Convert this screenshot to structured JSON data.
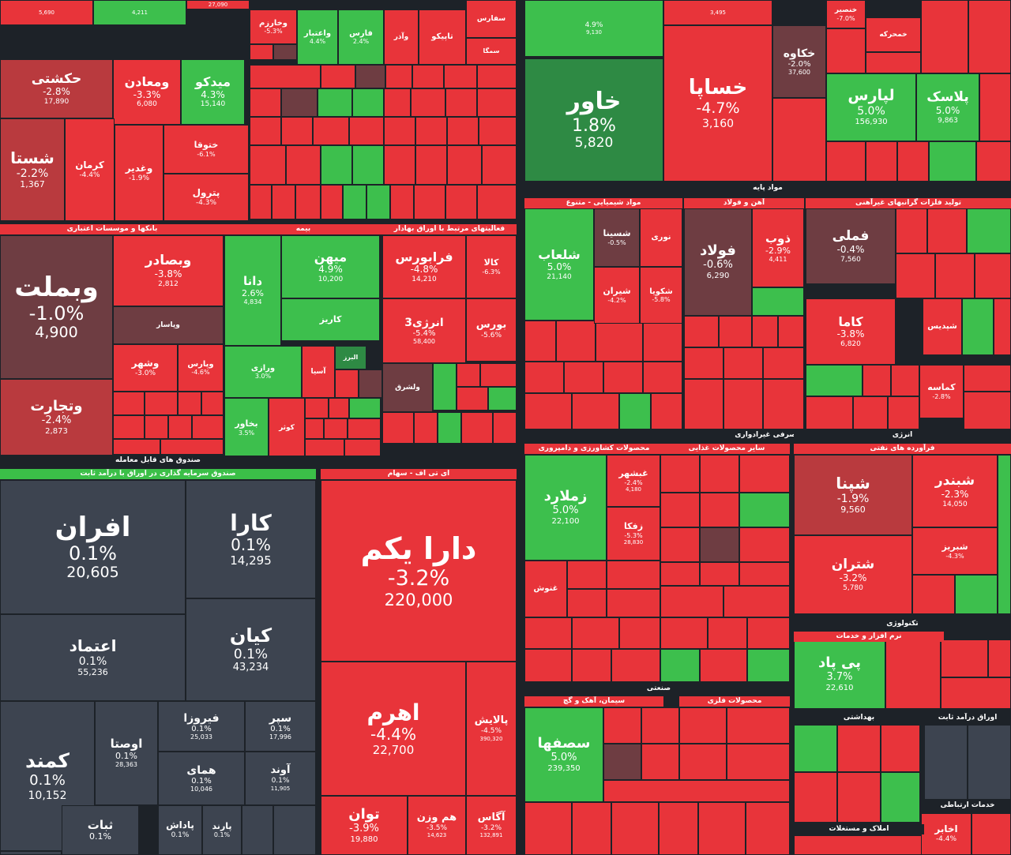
{
  "colors": {
    "red": "#e8343a",
    "dark_red": "#b93a3e",
    "brown": "#6e3d42",
    "green": "#3dbf4d",
    "dark_green": "#2e8a44",
    "gray": "#3d4450",
    "background": "#1d2228"
  },
  "sectors": [
    {
      "label": "بانکها و موسسات اعتباری"
    },
    {
      "label": "بیمه"
    },
    {
      "label": "فعالیتهای مرتبط با اوراق بهادار"
    },
    {
      "label": "صندوق های قابل معامله"
    },
    {
      "label": "صندوق سرمایه گذاری در اوراق با درآمد ثابت"
    },
    {
      "label": "ای تی اف - سهام"
    },
    {
      "label": "مواد پایه"
    },
    {
      "label": "مواد شیمیایی - متنوع"
    },
    {
      "label": "آهن و فولاد"
    },
    {
      "label": "تولید فلزات گرانبهای غیرآهنی"
    },
    {
      "label": "مصرفی غیرادواری"
    },
    {
      "label": "محصولات کشاورزی و دامپروری"
    },
    {
      "label": "سایر محصولات غذایی"
    },
    {
      "label": "انرژی"
    },
    {
      "label": "فرآورده های نفتی"
    },
    {
      "label": "صنعتی"
    },
    {
      "label": "سیمان، آهک و گچ"
    },
    {
      "label": "محصولات فلزی"
    },
    {
      "label": "تکنولوژی"
    },
    {
      "label": "نرم افزار و خدمات"
    },
    {
      "label": "بهداشتی"
    },
    {
      "label": "اوراق درآمد ثابت"
    },
    {
      "label": "املاک و مستغلات"
    },
    {
      "label": "خدمات ارتباطی"
    }
  ],
  "tiles": [
    {
      "name": "",
      "pct": "",
      "price": "5,690"
    },
    {
      "name": "",
      "pct": "",
      "price": "4,211"
    },
    {
      "name": "",
      "pct": "",
      "price": "27,090"
    },
    {
      "name": "وخارزم",
      "pct": "-5.3%",
      "price": ""
    },
    {
      "name": "واعتبار",
      "pct": "4.4%",
      "price": ""
    },
    {
      "name": "فارس",
      "pct": "2.4%",
      "price": ""
    },
    {
      "name": "وآذر",
      "pct": "",
      "price": ""
    },
    {
      "name": "تاپیکو",
      "pct": "",
      "price": ""
    },
    {
      "name": "سفارس",
      "pct": "",
      "price": ""
    },
    {
      "name": "سمگا",
      "pct": "",
      "price": ""
    },
    {
      "name": "حکشتی",
      "pct": "-2.8%",
      "price": "17,890"
    },
    {
      "name": "ومعادن",
      "pct": "-3.3%",
      "price": "6,080"
    },
    {
      "name": "میدکو",
      "pct": "4.3%",
      "price": "15,140"
    },
    {
      "name": "شستا",
      "pct": "-2.2%",
      "price": "1,367"
    },
    {
      "name": "کرمان",
      "pct": "-4.4%",
      "price": ""
    },
    {
      "name": "وغدیر",
      "pct": "-1.9%",
      "price": ""
    },
    {
      "name": "ختوقا",
      "pct": "-6.1%",
      "price": ""
    },
    {
      "name": "پترول",
      "pct": "-4.3%",
      "price": ""
    },
    {
      "name": "وبملت",
      "pct": "-1.0%",
      "price": "4,900"
    },
    {
      "name": "وبصادر",
      "pct": "-3.8%",
      "price": "2,812"
    },
    {
      "name": "وپاسار",
      "pct": "",
      "price": ""
    },
    {
      "name": "وشهر",
      "pct": "-3.0%",
      "price": ""
    },
    {
      "name": "وپارس",
      "pct": "-4.6%",
      "price": ""
    },
    {
      "name": "وتجارت",
      "pct": "-2.4%",
      "price": "2,873"
    },
    {
      "name": "دانا",
      "pct": "2.6%",
      "price": "4,834"
    },
    {
      "name": "میهن",
      "pct": "4.9%",
      "price": "10,200"
    },
    {
      "name": "کاریز",
      "pct": "",
      "price": ""
    },
    {
      "name": "ورازی",
      "pct": "3.0%",
      "price": ""
    },
    {
      "name": "آسیا",
      "pct": "",
      "price": ""
    },
    {
      "name": "البرز",
      "pct": "",
      "price": ""
    },
    {
      "name": "بخاور",
      "pct": "3.5%",
      "price": ""
    },
    {
      "name": "کوثر",
      "pct": "",
      "price": ""
    },
    {
      "name": "فرابورس",
      "pct": "-4.8%",
      "price": "14,210"
    },
    {
      "name": "کالا",
      "pct": "-6.3%",
      "price": ""
    },
    {
      "name": "انرژی3",
      "pct": "-5.4%",
      "price": "58,400"
    },
    {
      "name": "بورس",
      "pct": "-5.6%",
      "price": ""
    },
    {
      "name": "ولشرق",
      "pct": "",
      "price": ""
    },
    {
      "name": "افران",
      "pct": "0.1%",
      "price": "20,605"
    },
    {
      "name": "کارا",
      "pct": "0.1%",
      "price": "14,295"
    },
    {
      "name": "اعتماد",
      "pct": "0.1%",
      "price": "55,236"
    },
    {
      "name": "کیان",
      "pct": "0.1%",
      "price": "43,234"
    },
    {
      "name": "کمند",
      "pct": "0.1%",
      "price": "10,152"
    },
    {
      "name": "اوصتا",
      "pct": "0.1%",
      "price": "28,363"
    },
    {
      "name": "فیروزا",
      "pct": "0.1%",
      "price": "25,033"
    },
    {
      "name": "سپر",
      "pct": "0.1%",
      "price": "17,996"
    },
    {
      "name": "همای",
      "pct": "0.1%",
      "price": "10,046"
    },
    {
      "name": "آوند",
      "pct": "0.1%",
      "price": "11,905"
    },
    {
      "name": "ثبات",
      "pct": "0.1%",
      "price": ""
    },
    {
      "name": "پاداش",
      "pct": "0.1%",
      "price": ""
    },
    {
      "name": "پارند",
      "pct": "0.1%",
      "price": ""
    },
    {
      "name": "دارا یکم",
      "pct": "-3.2%",
      "price": "220,000"
    },
    {
      "name": "اهرم",
      "pct": "-4.4%",
      "price": "22,700"
    },
    {
      "name": "پالایش",
      "pct": "-4.5%",
      "price": "390,320"
    },
    {
      "name": "توان",
      "pct": "-3.9%",
      "price": "19,880"
    },
    {
      "name": "هم وزن",
      "pct": "-3.5%",
      "price": "14,623"
    },
    {
      "name": "آگاس",
      "pct": "-3.2%",
      "price": "132,891"
    },
    {
      "name": "",
      "pct": "4.9%",
      "price": "9,130"
    },
    {
      "name": "",
      "pct": "",
      "price": "3,495"
    },
    {
      "name": "خاور",
      "pct": "1.8%",
      "price": "5,820"
    },
    {
      "name": "خساپا",
      "pct": "-4.7%",
      "price": "3,160"
    },
    {
      "name": "خکاوه",
      "pct": "-2.0%",
      "price": "37,600"
    },
    {
      "name": "خنصیر",
      "pct": "-7.0%",
      "price": ""
    },
    {
      "name": "خمحرکه",
      "pct": "",
      "price": ""
    },
    {
      "name": "لپارس",
      "pct": "5.0%",
      "price": "156,930"
    },
    {
      "name": "پلاسک",
      "pct": "5.0%",
      "price": "9,863"
    },
    {
      "name": "شلعاب",
      "pct": "5.0%",
      "price": "21,140"
    },
    {
      "name": "شسینا",
      "pct": "-0.5%",
      "price": ""
    },
    {
      "name": "نوری",
      "pct": "",
      "price": ""
    },
    {
      "name": "شیران",
      "pct": "-4.2%",
      "price": ""
    },
    {
      "name": "شکویا",
      "pct": "-5.8%",
      "price": ""
    },
    {
      "name": "فولاد",
      "pct": "-0.6%",
      "price": "6,290"
    },
    {
      "name": "ذوب",
      "pct": "-2.9%",
      "price": "4,411"
    },
    {
      "name": "فملی",
      "pct": "-0.4%",
      "price": "7,560"
    },
    {
      "name": "کاما",
      "pct": "-3.8%",
      "price": "6,820"
    },
    {
      "name": "شپدیس",
      "pct": "",
      "price": ""
    },
    {
      "name": "کماسه",
      "pct": "-2.8%",
      "price": ""
    },
    {
      "name": "زملارد",
      "pct": "5.0%",
      "price": "22,100"
    },
    {
      "name": "غبشهر",
      "pct": "-2.4%",
      "price": "4,180"
    },
    {
      "name": "زفکا",
      "pct": "-5.3%",
      "price": "28,830"
    },
    {
      "name": "غنوش",
      "pct": "",
      "price": ""
    },
    {
      "name": "شپنا",
      "pct": "-1.9%",
      "price": "9,560"
    },
    {
      "name": "شبندر",
      "pct": "-2.3%",
      "price": "14,050"
    },
    {
      "name": "شبریز",
      "pct": "-4.3%",
      "price": ""
    },
    {
      "name": "شتران",
      "pct": "-3.2%",
      "price": "5,780"
    },
    {
      "name": "پی پاد",
      "pct": "3.7%",
      "price": "22,610"
    },
    {
      "name": "سصفها",
      "pct": "5.0%",
      "price": "239,350"
    },
    {
      "name": "اخابر",
      "pct": "-4.4%",
      "price": ""
    }
  ]
}
